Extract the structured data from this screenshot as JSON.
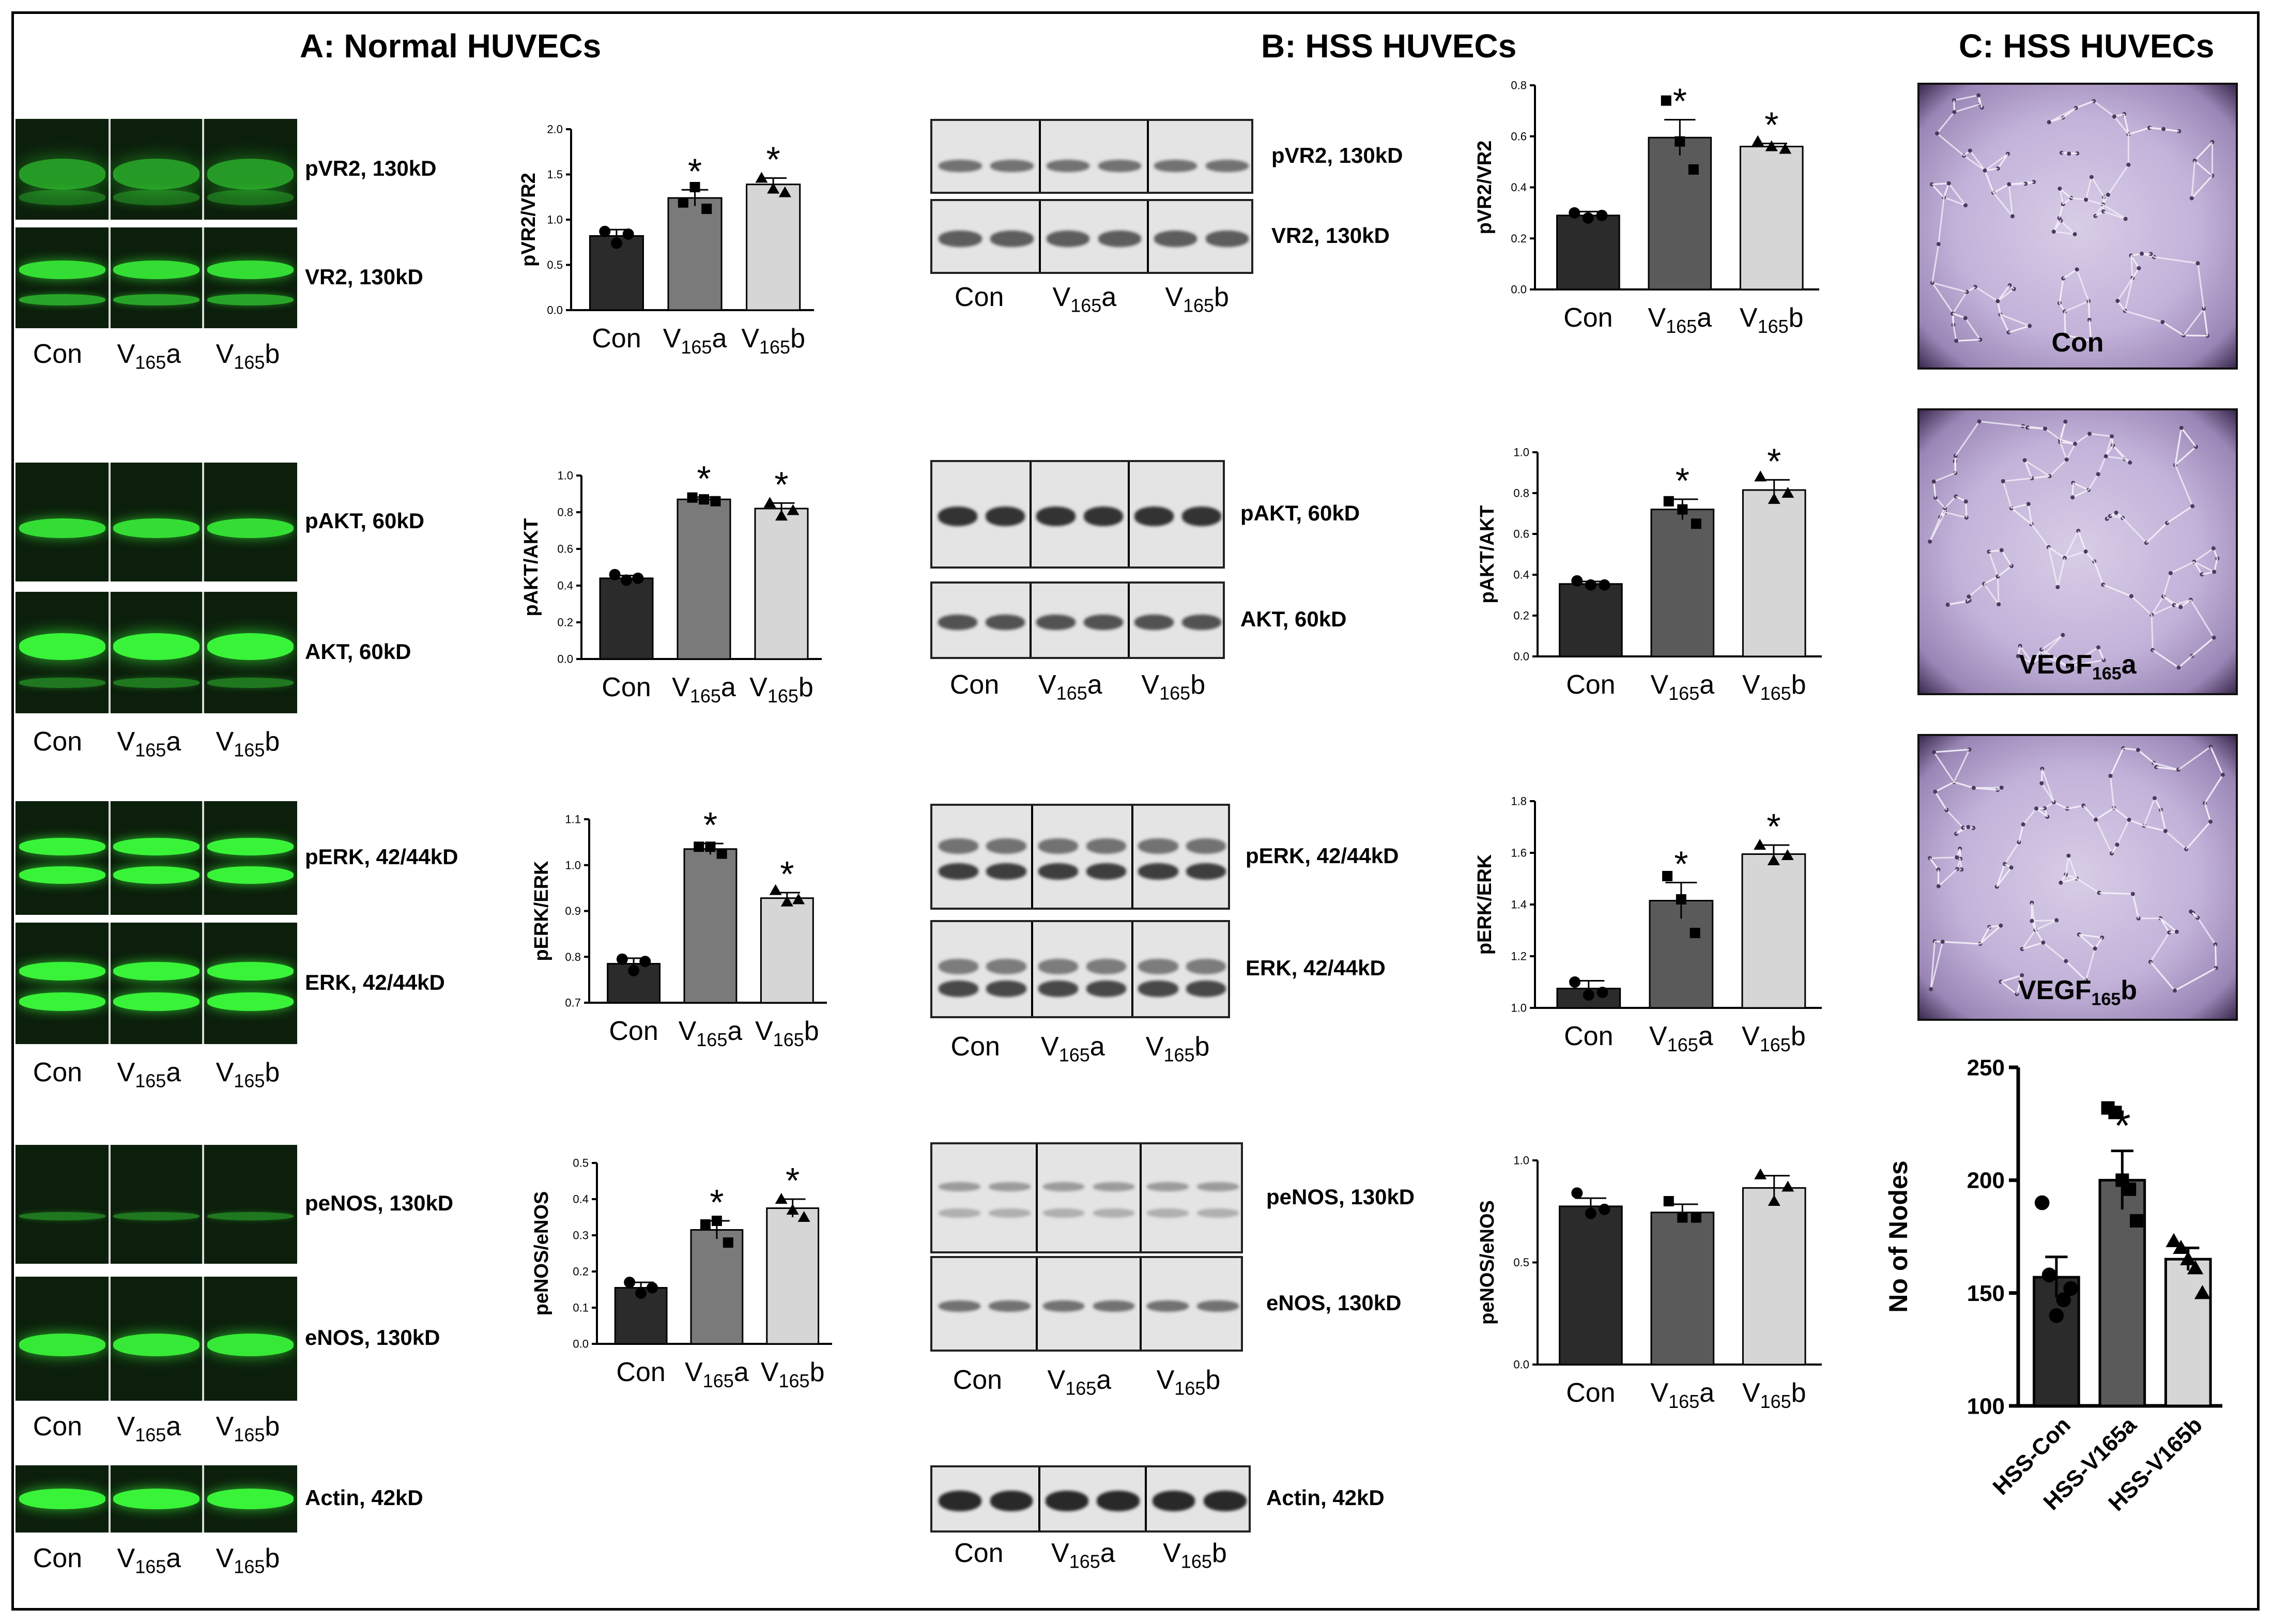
{
  "titles": {
    "panel_a": "A: Normal HUVECs",
    "panel_b": "B: HSS HUVECs",
    "panel_c": "C: HSS HUVECs"
  },
  "blot_labels": {
    "pvr2": "pVR2, 130kD",
    "vr2": "VR2, 130kD",
    "pakt": "pAKT, 60kD",
    "akt": "AKT, 60kD",
    "perk": "pERK, 42/44kD",
    "erk": "ERK, 42/44kD",
    "penos": "peNOS, 130kD",
    "enos": "eNOS, 130kD",
    "actin": "Actin, 42kD"
  },
  "lanes": {
    "con": "Con",
    "v_prefix": "V",
    "v_sub": "165",
    "a_suffix": "a",
    "b_suffix": "b"
  },
  "micrographs": {
    "con": "Con",
    "vegf_prefix": "VEGF",
    "vegf_sub": "165",
    "a_suffix": "a",
    "b_suffix": "b"
  },
  "colors": {
    "con_bar": "#2b2b2b",
    "va_bar": "#7a7a7a",
    "va_bar_alt": "#5a5a5a",
    "vb_bar": "#d6d6d6",
    "fluor_green": "#3cff3c",
    "fluor_bg": "#0e2a0e"
  },
  "chart_data": [
    {
      "id": "a-vr2",
      "type": "bar",
      "panel": "A",
      "ylabel": "pVR2/VR2",
      "categories": [
        "Con",
        "V165a",
        "V165b"
      ],
      "values": [
        0.82,
        1.24,
        1.39
      ],
      "errors": [
        0.07,
        0.09,
        0.07
      ],
      "significant": [
        false,
        true,
        true
      ],
      "points": [
        [
          0.87,
          0.74,
          0.84
        ],
        [
          1.19,
          1.36,
          1.12
        ],
        [
          1.46,
          1.34,
          1.3
        ]
      ],
      "ylim": [
        0,
        2.0
      ],
      "ticks": [
        "0.0",
        "0.5",
        "1.0",
        "1.5",
        "2.0"
      ]
    },
    {
      "id": "a-akt",
      "type": "bar",
      "panel": "A",
      "ylabel": "pAKT/AKT",
      "categories": [
        "Con",
        "V165a",
        "V165b"
      ],
      "values": [
        0.44,
        0.87,
        0.82
      ],
      "errors": [
        0.015,
        0.012,
        0.03
      ],
      "significant": [
        false,
        true,
        true
      ],
      "points": [
        [
          0.46,
          0.43,
          0.44
        ],
        [
          0.88,
          0.87,
          0.86
        ],
        [
          0.85,
          0.78,
          0.81
        ]
      ],
      "ylim": [
        0,
        1.0
      ],
      "ticks": [
        "0.0",
        "0.2",
        "0.4",
        "0.6",
        "0.8",
        "1.0"
      ]
    },
    {
      "id": "a-erk",
      "type": "bar",
      "panel": "A",
      "ylabel": "pERK/ERK",
      "categories": [
        "Con",
        "V165a",
        "V165b"
      ],
      "values": [
        0.785,
        1.035,
        0.928
      ],
      "errors": [
        0.012,
        0.012,
        0.012
      ],
      "significant": [
        false,
        true,
        true
      ],
      "points": [
        [
          0.795,
          0.77,
          0.79
        ],
        [
          1.04,
          1.04,
          1.025
        ],
        [
          0.945,
          0.92,
          0.925
        ]
      ],
      "ylim": [
        0.7,
        1.1
      ],
      "ticks": [
        "0.7",
        "0.8",
        "0.9",
        "1.0",
        "1.1"
      ]
    },
    {
      "id": "a-enos",
      "type": "bar",
      "panel": "A",
      "ylabel": "peNOS/eNOS",
      "categories": [
        "Con",
        "V165a",
        "V165b"
      ],
      "values": [
        0.155,
        0.315,
        0.375
      ],
      "errors": [
        0.015,
        0.025,
        0.025
      ],
      "significant": [
        false,
        true,
        true
      ],
      "points": [
        [
          0.17,
          0.14,
          0.155
        ],
        [
          0.33,
          0.34,
          0.28
        ],
        [
          0.4,
          0.37,
          0.35
        ]
      ],
      "ylim": [
        0,
        0.5
      ],
      "ticks": [
        "0.0",
        "0.1",
        "0.2",
        "0.3",
        "0.4",
        "0.5"
      ]
    },
    {
      "id": "b-vr2",
      "type": "bar",
      "panel": "B",
      "ylabel": "pVR2/VR2",
      "categories": [
        "Con",
        "V165a",
        "V165b"
      ],
      "values": [
        0.29,
        0.595,
        0.56
      ],
      "errors": [
        0.015,
        0.07,
        0.012
      ],
      "significant": [
        false,
        true,
        true
      ],
      "points": [
        [
          0.3,
          0.28,
          0.29
        ],
        [
          0.74,
          0.58,
          0.47
        ],
        [
          0.58,
          0.56,
          0.55
        ]
      ],
      "ylim": [
        0,
        0.8
      ],
      "ticks": [
        "0.0",
        "0.2",
        "0.4",
        "0.6",
        "0.8"
      ]
    },
    {
      "id": "b-akt",
      "type": "bar",
      "panel": "B",
      "ylabel": "pAKT/AKT",
      "categories": [
        "Con",
        "V165a",
        "V165b"
      ],
      "values": [
        0.355,
        0.72,
        0.815
      ],
      "errors": [
        0.012,
        0.05,
        0.05
      ],
      "significant": [
        false,
        true,
        true
      ],
      "points": [
        [
          0.37,
          0.35,
          0.35
        ],
        [
          0.76,
          0.72,
          0.65
        ],
        [
          0.88,
          0.77,
          0.8
        ]
      ],
      "ylim": [
        0,
        1.0
      ],
      "ticks": [
        "0.0",
        "0.2",
        "0.4",
        "0.6",
        "0.8",
        "1.0"
      ]
    },
    {
      "id": "b-erk",
      "type": "bar",
      "panel": "B",
      "ylabel": "pERK/ERK",
      "categories": [
        "Con",
        "V165a",
        "V165b"
      ],
      "values": [
        1.075,
        1.415,
        1.595
      ],
      "errors": [
        0.03,
        0.07,
        0.035
      ],
      "significant": [
        false,
        true,
        true
      ],
      "points": [
        [
          1.1,
          1.05,
          1.06
        ],
        [
          1.51,
          1.42,
          1.29
        ],
        [
          1.63,
          1.57,
          1.59
        ]
      ],
      "ylim": [
        1.0,
        1.8
      ],
      "ticks": [
        "1.0",
        "1.2",
        "1.4",
        "1.6",
        "1.8"
      ]
    },
    {
      "id": "b-enos",
      "type": "bar",
      "panel": "B",
      "ylabel": "peNOS/eNOS",
      "categories": [
        "Con",
        "V165a",
        "V165b"
      ],
      "values": [
        0.775,
        0.745,
        0.865
      ],
      "errors": [
        0.04,
        0.04,
        0.06
      ],
      "significant": [
        false,
        false,
        false
      ],
      "points": [
        [
          0.84,
          0.74,
          0.76
        ],
        [
          0.8,
          0.72,
          0.72
        ],
        [
          0.93,
          0.8,
          0.87
        ]
      ],
      "ylim": [
        0,
        1.0
      ],
      "ticks": [
        "0.0",
        "0.5",
        "1.0"
      ]
    },
    {
      "id": "c-nodes",
      "type": "bar",
      "panel": "C",
      "ylabel": "No of Nodes",
      "categories": [
        "HSS-Con",
        "HSS-V165a",
        "HSS-V165b"
      ],
      "values": [
        157,
        200,
        165
      ],
      "errors": [
        9,
        13,
        5
      ],
      "significant": [
        false,
        true,
        false
      ],
      "points": [
        [
          190,
          158,
          140,
          147,
          152
        ],
        [
          232,
          230,
          200,
          196,
          182
        ],
        [
          173,
          170,
          165,
          161,
          150
        ]
      ],
      "ylim": [
        100,
        250
      ],
      "ticks": [
        "100",
        "150",
        "200",
        "250"
      ]
    }
  ]
}
